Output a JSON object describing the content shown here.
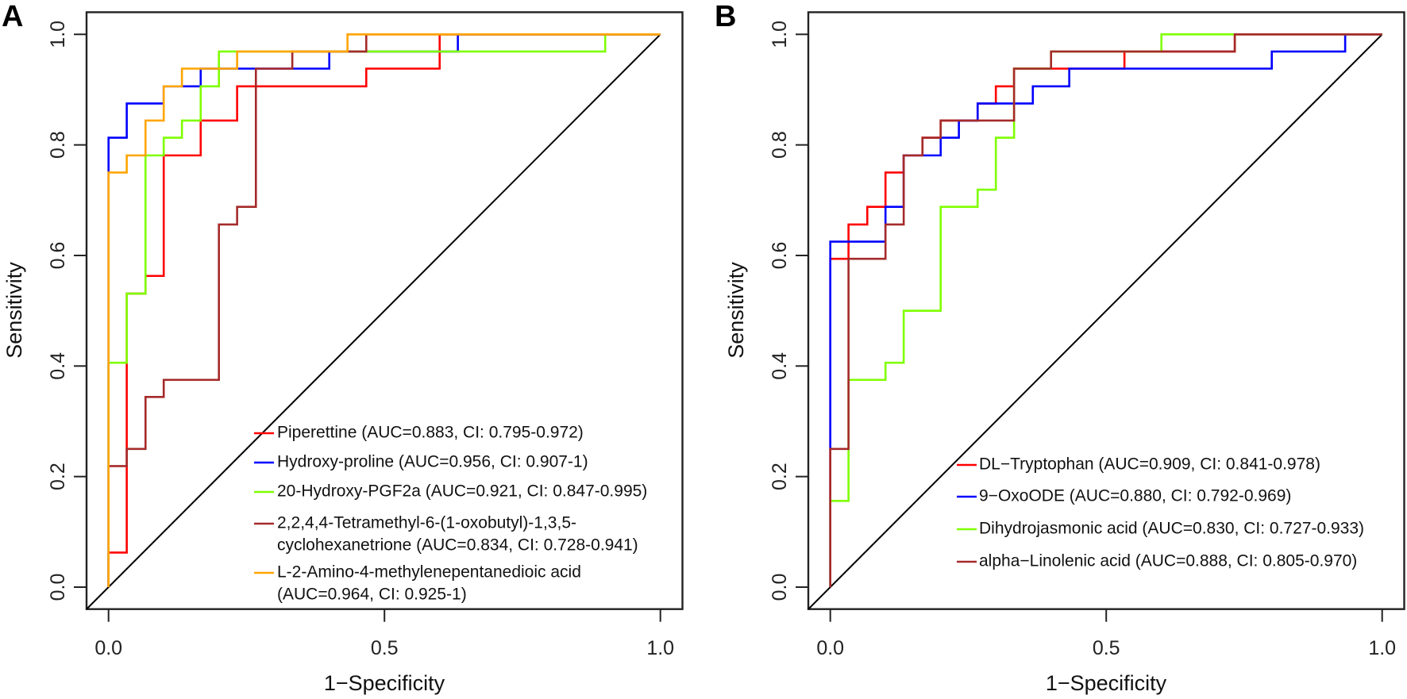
{
  "chart_data": [
    {
      "type": "line",
      "panel_label": "A",
      "xlabel": "1−Specificity",
      "ylabel": "Sensitivity",
      "xlim": [
        0,
        1
      ],
      "ylim": [
        0,
        1
      ],
      "xticks": [
        "0.0",
        "0.5",
        "1.0"
      ],
      "yticks": [
        "0.0",
        "0.2",
        "0.4",
        "0.6",
        "0.8",
        "1.0"
      ],
      "reference_line": "diagonal",
      "legend_position": "bottom-right",
      "series": [
        {
          "name": "Piperettine",
          "label_lines": [
            "Piperettine (AUC=0.883, CI: 0.795-0.972)"
          ],
          "auc": 0.883,
          "ci": [
            0.795,
            0.972
          ],
          "color": "#FF0000",
          "steps": [
            [
              0,
              0.0625
            ],
            [
              0.033,
              0.531
            ],
            [
              0.067,
              0.563
            ],
            [
              0.1,
              0.781
            ],
            [
              0.167,
              0.844
            ],
            [
              0.233,
              0.906
            ],
            [
              0.467,
              0.938
            ],
            [
              0.6,
              1
            ]
          ]
        },
        {
          "name": "Hydroxy-proline",
          "label_lines": [
            "Hydroxy-proline (AUC=0.956, CI: 0.907-1)"
          ],
          "auc": 0.956,
          "ci": [
            0.907,
            1
          ],
          "color": "#0000FF",
          "steps": [
            [
              0,
              0.813
            ],
            [
              0.033,
              0.875
            ],
            [
              0.1,
              0.906
            ],
            [
              0.167,
              0.938
            ],
            [
              0.4,
              0.969
            ],
            [
              0.633,
              1
            ]
          ]
        },
        {
          "name": "20-Hydroxy-PGF2a",
          "label_lines": [
            "20-Hydroxy-PGF2a (AUC=0.921, CI: 0.847-0.995)"
          ],
          "auc": 0.921,
          "ci": [
            0.847,
            0.995
          ],
          "color": "#7FFF00",
          "steps": [
            [
              0,
              0.406
            ],
            [
              0.033,
              0.531
            ],
            [
              0.067,
              0.781
            ],
            [
              0.1,
              0.813
            ],
            [
              0.133,
              0.844
            ],
            [
              0.167,
              0.906
            ],
            [
              0.2,
              0.969
            ],
            [
              0.9,
              1
            ]
          ]
        },
        {
          "name": "2,2,4,4-Tetramethyl-6-(1-oxobutyl)-1,3,5-cyclohexanetrione",
          "label_lines": [
            "2,2,4,4-Tetramethyl-6-(1-oxobutyl)-1,3,5-",
            "cyclohexanetrione (AUC=0.834, CI: 0.728-0.941)"
          ],
          "auc": 0.834,
          "ci": [
            0.728,
            0.941
          ],
          "color": "#A52A2A",
          "steps": [
            [
              0,
              0.219
            ],
            [
              0.033,
              0.25
            ],
            [
              0.067,
              0.344
            ],
            [
              0.1,
              0.375
            ],
            [
              0.2,
              0.656
            ],
            [
              0.233,
              0.688
            ],
            [
              0.267,
              0.938
            ],
            [
              0.333,
              0.969
            ],
            [
              0.467,
              1
            ]
          ]
        },
        {
          "name": "L-2-Amino-4-methylenepentanedioic acid",
          "label_lines": [
            "L-2-Amino-4-methylenepentanedioic acid",
            " (AUC=0.964, CI: 0.925-1)"
          ],
          "auc": 0.964,
          "ci": [
            0.925,
            1
          ],
          "color": "#FFA500",
          "steps": [
            [
              0,
              0.75
            ],
            [
              0.033,
              0.781
            ],
            [
              0.067,
              0.844
            ],
            [
              0.1,
              0.906
            ],
            [
              0.133,
              0.938
            ],
            [
              0.233,
              0.969
            ],
            [
              0.433,
              1
            ]
          ]
        }
      ]
    },
    {
      "type": "line",
      "panel_label": "B",
      "xlabel": "1−Specificity",
      "ylabel": "Sensitivity",
      "xlim": [
        0,
        1
      ],
      "ylim": [
        0,
        1
      ],
      "xticks": [
        "0.0",
        "0.5",
        "1.0"
      ],
      "yticks": [
        "0.0",
        "0.2",
        "0.4",
        "0.6",
        "0.8",
        "1.0"
      ],
      "reference_line": "diagonal",
      "legend_position": "bottom-right",
      "series": [
        {
          "name": "DL−Tryptophan",
          "label_lines": [
            "DL−Tryptophan (AUC=0.909, CI: 0.841-0.978)"
          ],
          "auc": 0.909,
          "ci": [
            0.841,
            0.978
          ],
          "color": "#FF0000",
          "steps": [
            [
              0,
              0.594
            ],
            [
              0.033,
              0.656
            ],
            [
              0.067,
              0.688
            ],
            [
              0.1,
              0.75
            ],
            [
              0.133,
              0.781
            ],
            [
              0.167,
              0.813
            ],
            [
              0.2,
              0.844
            ],
            [
              0.267,
              0.875
            ],
            [
              0.3,
              0.906
            ],
            [
              0.333,
              0.938
            ],
            [
              0.533,
              0.969
            ],
            [
              0.733,
              1
            ]
          ]
        },
        {
          "name": "9−OxoODE",
          "label_lines": [
            "9−OxoODE (AUC=0.880, CI: 0.792-0.969)"
          ],
          "auc": 0.88,
          "ci": [
            0.792,
            0.969
          ],
          "color": "#0000FF",
          "steps": [
            [
              0,
              0.625
            ],
            [
              0.1,
              0.688
            ],
            [
              0.133,
              0.781
            ],
            [
              0.2,
              0.813
            ],
            [
              0.233,
              0.844
            ],
            [
              0.267,
              0.875
            ],
            [
              0.367,
              0.906
            ],
            [
              0.433,
              0.938
            ],
            [
              0.8,
              0.969
            ],
            [
              0.933,
              1
            ]
          ]
        },
        {
          "name": "Dihydrojasmonic acid",
          "label_lines": [
            "Dihydrojasmonic acid (AUC=0.830, CI: 0.727-0.933)"
          ],
          "auc": 0.83,
          "ci": [
            0.727,
            0.933
          ],
          "color": "#7FFF00",
          "steps": [
            [
              0,
              0.156
            ],
            [
              0.033,
              0.375
            ],
            [
              0.1,
              0.406
            ],
            [
              0.133,
              0.5
            ],
            [
              0.2,
              0.688
            ],
            [
              0.267,
              0.719
            ],
            [
              0.3,
              0.813
            ],
            [
              0.333,
              0.938
            ],
            [
              0.4,
              0.969
            ],
            [
              0.6,
              1
            ]
          ]
        },
        {
          "name": "alpha−Linolenic acid",
          "label_lines": [
            "alpha−Linolenic acid (AUC=0.888, CI: 0.805-0.970)"
          ],
          "auc": 0.888,
          "ci": [
            0.805,
            0.97
          ],
          "color": "#A52A2A",
          "steps": [
            [
              0,
              0.25
            ],
            [
              0.033,
              0.594
            ],
            [
              0.1,
              0.656
            ],
            [
              0.133,
              0.781
            ],
            [
              0.167,
              0.813
            ],
            [
              0.2,
              0.844
            ],
            [
              0.333,
              0.938
            ],
            [
              0.4,
              0.969
            ],
            [
              0.733,
              1
            ]
          ]
        }
      ]
    }
  ]
}
